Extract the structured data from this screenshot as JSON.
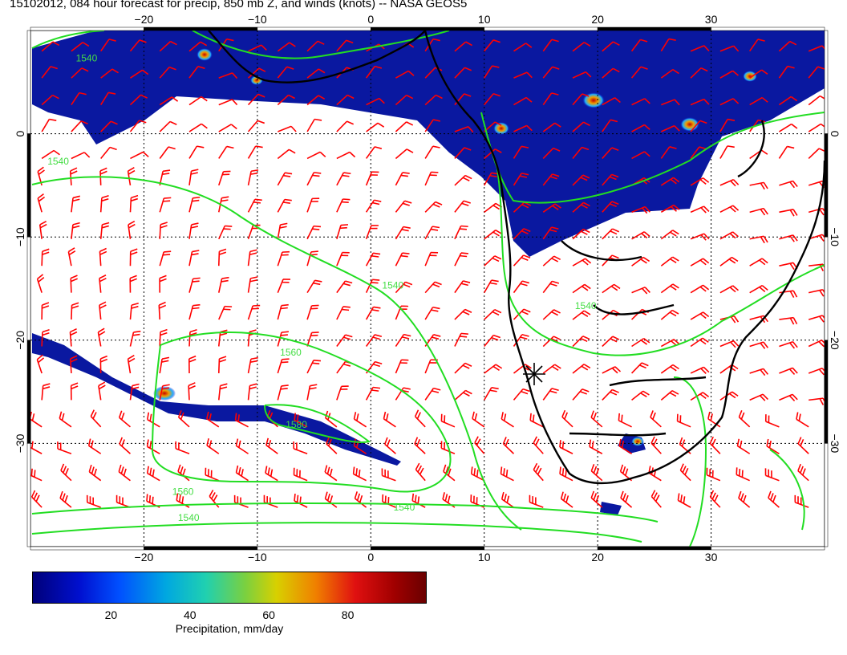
{
  "title": "15102012, 084 hour forecast for precip, 850 mb Z, and winds (knots) -- NASA GEOS5",
  "axes": {
    "lon_ticks_top": [
      "−20",
      "−10",
      "0",
      "10",
      "20",
      "30"
    ],
    "lon_ticks_bottom": [
      "−20",
      "−10",
      "0",
      "10",
      "20",
      "30"
    ],
    "lat_ticks_left": [
      "0",
      "−10",
      "−20",
      "−30"
    ],
    "lat_ticks_right": [
      "0",
      "−10",
      "−20",
      "−30"
    ],
    "lon_range": [
      -30,
      40
    ],
    "lat_range": [
      -40,
      10
    ]
  },
  "contour_labels": [
    {
      "text": "1540",
      "lon": -26,
      "lat": 7
    },
    {
      "text": "1540",
      "lon": -28.5,
      "lat": -3
    },
    {
      "text": "1540",
      "lon": 1,
      "lat": -15
    },
    {
      "text": "1560",
      "lon": -8,
      "lat": -21.5
    },
    {
      "text": "1580",
      "lon": -7.5,
      "lat": -28.5
    },
    {
      "text": "1560",
      "lon": -17.5,
      "lat": -35
    },
    {
      "text": "1540",
      "lon": -17,
      "lat": -37.5
    },
    {
      "text": "1540",
      "lon": 2,
      "lat": -36.5
    },
    {
      "text": "1540",
      "lon": 18,
      "lat": -17
    }
  ],
  "colorbar": {
    "title": "Precipitation, mm/day",
    "ticks": [
      {
        "value": 20,
        "label": "20"
      },
      {
        "value": 40,
        "label": "40"
      },
      {
        "value": 60,
        "label": "60"
      },
      {
        "value": 80,
        "label": "80"
      }
    ],
    "range": [
      0,
      100
    ]
  },
  "colors": {
    "wind_barbs": "#ff0000",
    "contours": "#22dd22",
    "precip_low": "#00008a",
    "coastline": "#000000"
  }
}
